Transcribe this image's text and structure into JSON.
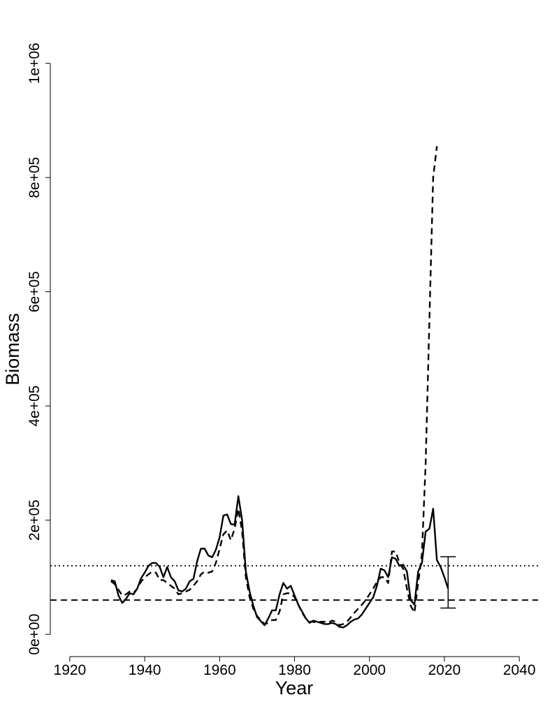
{
  "chart_data": {
    "type": "line",
    "xlabel": "Year",
    "ylabel": "Biomass",
    "xlim": [
      1914.8,
      2045
    ],
    "ylim": [
      -39000,
      1040000
    ],
    "xticks": [
      1920,
      1940,
      1960,
      1980,
      2000,
      2020,
      2040
    ],
    "yticks": [
      {
        "value": 0,
        "label": "0e+00"
      },
      {
        "value": 200000,
        "label": "2e+05"
      },
      {
        "value": 400000,
        "label": "4e+05"
      },
      {
        "value": 600000,
        "label": "6e+05"
      },
      {
        "value": 800000,
        "label": "8e+05"
      },
      {
        "value": 1000000,
        "label": "1e+06"
      }
    ],
    "series": [
      {
        "color": "#000000",
        "linestyle": "solid",
        "x": [
          1931,
          1932,
          1933,
          1934,
          1935,
          1936,
          1937,
          1938,
          1939,
          1940,
          1941,
          1942,
          1943,
          1944,
          1945,
          1946,
          1947,
          1948,
          1949,
          1950,
          1951,
          1952,
          1953,
          1954,
          1955,
          1956,
          1957,
          1958,
          1959,
          1960,
          1961,
          1962,
          1963,
          1964,
          1965,
          1966,
          1967,
          1968,
          1969,
          1970,
          1971,
          1972,
          1973,
          1974,
          1975,
          1976,
          1977,
          1978,
          1979,
          1980,
          1981,
          1982,
          1983,
          1984,
          1985,
          1986,
          1987,
          1988,
          1989,
          1990,
          1991,
          1992,
          1993,
          1994,
          1995,
          1996,
          1997,
          1998,
          1999,
          2000,
          2001,
          2002,
          2003,
          2004,
          2005,
          2006,
          2007,
          2008,
          2009,
          2010,
          2011,
          2012,
          2013,
          2014,
          2015,
          2016,
          2017,
          2018,
          2019,
          2020,
          2021
        ],
        "values": [
          95000,
          93000,
          68000,
          55000,
          62000,
          72000,
          70000,
          80000,
          98000,
          108000,
          120000,
          125000,
          125000,
          118000,
          100000,
          118000,
          100000,
          93000,
          77000,
          75000,
          80000,
          93000,
          97000,
          128000,
          150000,
          150000,
          138000,
          135000,
          148000,
          170000,
          208000,
          210000,
          193000,
          192000,
          242000,
          200000,
          110000,
          75000,
          50000,
          30000,
          23000,
          16000,
          28000,
          42000,
          42000,
          70000,
          90000,
          80000,
          85000,
          68000,
          52000,
          40000,
          28000,
          20000,
          24000,
          22000,
          20000,
          18000,
          18000,
          20000,
          18000,
          13000,
          12000,
          16000,
          22000,
          26000,
          28000,
          35000,
          45000,
          55000,
          65000,
          85000,
          115000,
          112000,
          100000,
          135000,
          132000,
          120000,
          122000,
          110000,
          60000,
          52000,
          110000,
          125000,
          180000,
          185000,
          220000,
          130000,
          118000,
          100000,
          80000
        ]
      },
      {
        "color": "#000000",
        "linestyle": "dashed",
        "x": [
          1931,
          1932,
          1933,
          1934,
          1935,
          1936,
          1937,
          1938,
          1939,
          1940,
          1941,
          1942,
          1943,
          1944,
          1945,
          1946,
          1947,
          1948,
          1949,
          1950,
          1951,
          1952,
          1953,
          1954,
          1955,
          1956,
          1957,
          1958,
          1959,
          1960,
          1961,
          1962,
          1963,
          1964,
          1965,
          1966,
          1967,
          1968,
          1969,
          1970,
          1971,
          1972,
          1973,
          1974,
          1975,
          1976,
          1977,
          1978,
          1979,
          1980,
          1981,
          1982,
          1983,
          1984,
          1985,
          1986,
          1987,
          1988,
          1989,
          1990,
          1991,
          1992,
          1993,
          1994,
          1995,
          1996,
          1997,
          1998,
          1999,
          2000,
          2001,
          2002,
          2003,
          2004,
          2005,
          2006,
          2007,
          2008,
          2009,
          2010,
          2011,
          2012,
          2013,
          2014,
          2015,
          2016,
          2017,
          2018
        ],
        "values": [
          93000,
          88000,
          78000,
          68000,
          70000,
          75000,
          72000,
          80000,
          92000,
          100000,
          105000,
          110000,
          108000,
          95000,
          95000,
          90000,
          85000,
          80000,
          70000,
          72000,
          75000,
          78000,
          85000,
          93000,
          105000,
          110000,
          108000,
          110000,
          125000,
          150000,
          175000,
          182000,
          165000,
          185000,
          220000,
          180000,
          100000,
          65000,
          45000,
          32000,
          25000,
          18000,
          20000,
          25000,
          25000,
          40000,
          70000,
          72000,
          72000,
          65000,
          52000,
          38000,
          28000,
          22000,
          22000,
          20000,
          22000,
          22000,
          20000,
          24000,
          22000,
          16000,
          18000,
          22000,
          30000,
          38000,
          45000,
          52000,
          60000,
          70000,
          80000,
          92000,
          100000,
          100000,
          90000,
          145000,
          145000,
          125000,
          115000,
          80000,
          50000,
          38000,
          90000,
          140000,
          300000,
          550000,
          800000,
          855000
        ]
      }
    ],
    "hlines": [
      {
        "value": 120000,
        "linestyle": "dotted"
      },
      {
        "value": 60000,
        "linestyle": "dashed"
      }
    ],
    "errorbar": {
      "x": 2021,
      "low": 46000,
      "high": 136000
    }
  }
}
